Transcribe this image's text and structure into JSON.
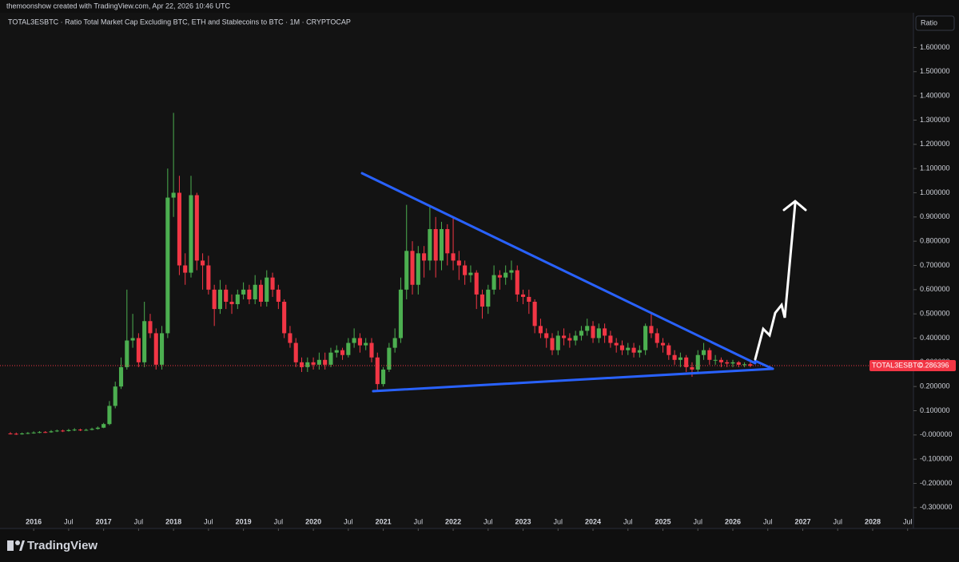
{
  "header": {
    "credit": "themoonshow created with TradingView.com, Apr 22, 2026 10:46 UTC",
    "scale_button": "Ratio",
    "brand": "TradingView"
  },
  "chart_data": {
    "type": "candlestick",
    "title": "TOTAL3ESBTC · Ratio Total Market Cap Excluding BTC, ETH and Stablecoins to BTC · 1M · CRYPTOCAP",
    "up_color": "#4caf50",
    "down_color": "#f23645",
    "x": [
      "2015-09",
      "2015-10",
      "2015-11",
      "2015-12",
      "2016-01",
      "2016-02",
      "2016-03",
      "2016-04",
      "2016-05",
      "2016-06",
      "2016-07",
      "2016-08",
      "2016-09",
      "2016-10",
      "2016-11",
      "2016-12",
      "2017-01",
      "2017-02",
      "2017-03",
      "2017-04",
      "2017-05",
      "2017-06",
      "2017-07",
      "2017-08",
      "2017-09",
      "2017-10",
      "2017-11",
      "2017-12",
      "2018-01",
      "2018-02",
      "2018-03",
      "2018-04",
      "2018-05",
      "2018-06",
      "2018-07",
      "2018-08",
      "2018-09",
      "2018-10",
      "2018-11",
      "2018-12",
      "2019-01",
      "2019-02",
      "2019-03",
      "2019-04",
      "2019-05",
      "2019-06",
      "2019-07",
      "2019-08",
      "2019-09",
      "2019-10",
      "2019-11",
      "2019-12",
      "2020-01",
      "2020-02",
      "2020-03",
      "2020-04",
      "2020-05",
      "2020-06",
      "2020-07",
      "2020-08",
      "2020-09",
      "2020-10",
      "2020-11",
      "2020-12",
      "2021-01",
      "2021-02",
      "2021-03",
      "2021-04",
      "2021-05",
      "2021-06",
      "2021-07",
      "2021-08",
      "2021-09",
      "2021-10",
      "2021-11",
      "2021-12",
      "2022-01",
      "2022-02",
      "2022-03",
      "2022-04",
      "2022-05",
      "2022-06",
      "2022-07",
      "2022-08",
      "2022-09",
      "2022-10",
      "2022-11",
      "2022-12",
      "2023-01",
      "2023-02",
      "2023-03",
      "2023-04",
      "2023-05",
      "2023-06",
      "2023-07",
      "2023-08",
      "2023-09",
      "2023-10",
      "2023-11",
      "2023-12",
      "2024-01",
      "2024-02",
      "2024-03",
      "2024-04",
      "2024-05",
      "2024-06",
      "2024-07",
      "2024-08",
      "2024-09",
      "2024-10",
      "2024-11",
      "2024-12",
      "2025-01",
      "2025-02",
      "2025-03",
      "2025-04",
      "2025-05",
      "2025-06",
      "2025-07",
      "2025-08",
      "2025-09",
      "2025-10",
      "2025-11",
      "2025-12",
      "2026-01",
      "2026-02",
      "2026-03",
      "2026-04"
    ],
    "open": [
      0.006,
      0.005,
      0.004,
      0.006,
      0.008,
      0.01,
      0.012,
      0.011,
      0.015,
      0.018,
      0.016,
      0.02,
      0.022,
      0.019,
      0.021,
      0.025,
      0.03,
      0.045,
      0.12,
      0.2,
      0.28,
      0.39,
      0.4,
      0.3,
      0.47,
      0.42,
      0.29,
      0.42,
      0.98,
      1.0,
      0.7,
      0.67,
      0.99,
      0.72,
      0.7,
      0.6,
      0.52,
      0.6,
      0.55,
      0.54,
      0.58,
      0.6,
      0.56,
      0.62,
      0.55,
      0.65,
      0.6,
      0.55,
      0.42,
      0.38,
      0.3,
      0.28,
      0.3,
      0.29,
      0.31,
      0.29,
      0.34,
      0.35,
      0.33,
      0.38,
      0.4,
      0.37,
      0.38,
      0.32,
      0.21,
      0.27,
      0.36,
      0.4,
      0.6,
      0.76,
      0.62,
      0.75,
      0.72,
      0.85,
      0.72,
      0.85,
      0.75,
      0.72,
      0.7,
      0.66,
      0.67,
      0.58,
      0.53,
      0.6,
      0.66,
      0.65,
      0.67,
      0.68,
      0.58,
      0.57,
      0.55,
      0.45,
      0.42,
      0.4,
      0.35,
      0.41,
      0.4,
      0.39,
      0.41,
      0.43,
      0.45,
      0.4,
      0.44,
      0.41,
      0.38,
      0.37,
      0.35,
      0.36,
      0.34,
      0.35,
      0.45,
      0.42,
      0.38,
      0.37,
      0.33,
      0.31,
      0.32,
      0.28,
      0.27,
      0.33,
      0.35,
      0.31,
      0.31,
      0.3,
      0.295,
      0.3,
      0.29,
      0.292
    ],
    "high": [
      0.012,
      0.01,
      0.01,
      0.012,
      0.015,
      0.016,
      0.016,
      0.02,
      0.022,
      0.022,
      0.025,
      0.028,
      0.026,
      0.026,
      0.03,
      0.035,
      0.05,
      0.14,
      0.22,
      0.32,
      0.6,
      0.5,
      0.42,
      0.55,
      0.5,
      0.44,
      0.45,
      1.1,
      1.33,
      1.07,
      0.75,
      1.07,
      1.0,
      0.75,
      0.74,
      0.62,
      0.64,
      0.62,
      0.58,
      0.6,
      0.63,
      0.62,
      0.66,
      0.64,
      0.68,
      0.67,
      0.62,
      0.56,
      0.45,
      0.4,
      0.32,
      0.32,
      0.32,
      0.34,
      0.34,
      0.36,
      0.37,
      0.36,
      0.4,
      0.44,
      0.42,
      0.4,
      0.4,
      0.34,
      0.28,
      0.38,
      0.44,
      0.65,
      0.95,
      0.8,
      0.78,
      0.78,
      0.95,
      0.9,
      0.88,
      0.87,
      0.9,
      0.76,
      0.72,
      0.7,
      0.68,
      0.6,
      0.62,
      0.7,
      0.68,
      0.7,
      0.72,
      0.7,
      0.6,
      0.6,
      0.56,
      0.48,
      0.44,
      0.42,
      0.43,
      0.44,
      0.42,
      0.43,
      0.45,
      0.48,
      0.47,
      0.46,
      0.46,
      0.43,
      0.4,
      0.39,
      0.38,
      0.38,
      0.37,
      0.46,
      0.5,
      0.44,
      0.4,
      0.38,
      0.35,
      0.34,
      0.33,
      0.3,
      0.35,
      0.38,
      0.36,
      0.33,
      0.32,
      0.31,
      0.31,
      0.305,
      0.3,
      0.3
    ],
    "low": [
      0.002,
      0.0,
      0.001,
      0.003,
      0.005,
      0.007,
      0.008,
      0.009,
      0.012,
      0.012,
      0.014,
      0.016,
      0.016,
      0.017,
      0.019,
      0.022,
      0.028,
      0.04,
      0.11,
      0.19,
      0.27,
      0.36,
      0.28,
      0.28,
      0.4,
      0.27,
      0.27,
      0.4,
      0.9,
      0.66,
      0.62,
      0.65,
      0.68,
      0.6,
      0.58,
      0.45,
      0.5,
      0.52,
      0.5,
      0.52,
      0.56,
      0.54,
      0.54,
      0.53,
      0.53,
      0.57,
      0.52,
      0.4,
      0.36,
      0.28,
      0.26,
      0.26,
      0.27,
      0.27,
      0.27,
      0.28,
      0.32,
      0.31,
      0.32,
      0.36,
      0.34,
      0.35,
      0.3,
      0.18,
      0.2,
      0.26,
      0.34,
      0.38,
      0.56,
      0.58,
      0.58,
      0.65,
      0.68,
      0.65,
      0.68,
      0.7,
      0.68,
      0.64,
      0.62,
      0.63,
      0.52,
      0.48,
      0.5,
      0.58,
      0.6,
      0.62,
      0.64,
      0.55,
      0.54,
      0.5,
      0.42,
      0.4,
      0.36,
      0.33,
      0.33,
      0.37,
      0.36,
      0.37,
      0.39,
      0.41,
      0.38,
      0.38,
      0.38,
      0.36,
      0.34,
      0.33,
      0.33,
      0.32,
      0.32,
      0.33,
      0.4,
      0.36,
      0.34,
      0.31,
      0.29,
      0.28,
      0.26,
      0.24,
      0.26,
      0.31,
      0.29,
      0.29,
      0.28,
      0.28,
      0.28,
      0.28,
      0.28,
      0.28
    ],
    "close": [
      0.005,
      0.004,
      0.006,
      0.008,
      0.01,
      0.012,
      0.011,
      0.015,
      0.018,
      0.016,
      0.02,
      0.022,
      0.019,
      0.021,
      0.025,
      0.03,
      0.045,
      0.12,
      0.2,
      0.28,
      0.39,
      0.4,
      0.3,
      0.47,
      0.42,
      0.29,
      0.42,
      0.98,
      1.0,
      0.7,
      0.67,
      0.99,
      0.72,
      0.7,
      0.6,
      0.52,
      0.6,
      0.55,
      0.54,
      0.58,
      0.6,
      0.56,
      0.62,
      0.55,
      0.65,
      0.6,
      0.55,
      0.42,
      0.38,
      0.3,
      0.28,
      0.3,
      0.29,
      0.31,
      0.29,
      0.34,
      0.35,
      0.33,
      0.38,
      0.4,
      0.37,
      0.38,
      0.32,
      0.21,
      0.27,
      0.36,
      0.4,
      0.6,
      0.76,
      0.62,
      0.75,
      0.72,
      0.85,
      0.72,
      0.85,
      0.75,
      0.72,
      0.7,
      0.66,
      0.67,
      0.58,
      0.53,
      0.6,
      0.66,
      0.65,
      0.67,
      0.68,
      0.58,
      0.57,
      0.55,
      0.45,
      0.42,
      0.4,
      0.35,
      0.41,
      0.4,
      0.39,
      0.41,
      0.43,
      0.45,
      0.4,
      0.44,
      0.41,
      0.38,
      0.37,
      0.35,
      0.36,
      0.34,
      0.35,
      0.45,
      0.42,
      0.38,
      0.37,
      0.33,
      0.31,
      0.32,
      0.28,
      0.27,
      0.33,
      0.35,
      0.31,
      0.31,
      0.3,
      0.295,
      0.3,
      0.29,
      0.292,
      0.286
    ],
    "xlim": [
      "2015-09",
      "2028-08"
    ],
    "xticks": [
      {
        "value": "2016-01",
        "label": "2016"
      },
      {
        "value": "2016-07",
        "label": "Jul"
      },
      {
        "value": "2017-01",
        "label": "2017"
      },
      {
        "value": "2017-07",
        "label": "Jul"
      },
      {
        "value": "2018-01",
        "label": "2018"
      },
      {
        "value": "2018-07",
        "label": "Jul"
      },
      {
        "value": "2019-01",
        "label": "2019"
      },
      {
        "value": "2019-07",
        "label": "Jul"
      },
      {
        "value": "2020-01",
        "label": "2020"
      },
      {
        "value": "2020-07",
        "label": "Jul"
      },
      {
        "value": "2021-01",
        "label": "2021"
      },
      {
        "value": "2021-07",
        "label": "Jul"
      },
      {
        "value": "2022-01",
        "label": "2022"
      },
      {
        "value": "2022-07",
        "label": "Jul"
      },
      {
        "value": "2023-01",
        "label": "2023"
      },
      {
        "value": "2023-07",
        "label": "Jul"
      },
      {
        "value": "2024-01",
        "label": "2024"
      },
      {
        "value": "2024-07",
        "label": "Jul"
      },
      {
        "value": "2025-01",
        "label": "2025"
      },
      {
        "value": "2025-07",
        "label": "Jul"
      },
      {
        "value": "2026-01",
        "label": "2026"
      },
      {
        "value": "2026-07",
        "label": "Jul"
      },
      {
        "value": "2027-01",
        "label": "2027"
      },
      {
        "value": "2027-07",
        "label": "Jul"
      },
      {
        "value": "2028-01",
        "label": "2028"
      },
      {
        "value": "2028-07",
        "label": "Jul"
      }
    ],
    "ylim": [
      -0.34,
      1.73
    ],
    "yticks": [
      {
        "value": 1.6,
        "label": "1.600000"
      },
      {
        "value": 1.5,
        "label": "1.500000"
      },
      {
        "value": 1.4,
        "label": "1.400000"
      },
      {
        "value": 1.3,
        "label": "1.300000"
      },
      {
        "value": 1.2,
        "label": "1.200000"
      },
      {
        "value": 1.1,
        "label": "1.100000"
      },
      {
        "value": 1.0,
        "label": "1.000000"
      },
      {
        "value": 0.9,
        "label": "0.900000"
      },
      {
        "value": 0.8,
        "label": "0.800000"
      },
      {
        "value": 0.7,
        "label": "0.700000"
      },
      {
        "value": 0.6,
        "label": "0.600000"
      },
      {
        "value": 0.5,
        "label": "0.500000"
      },
      {
        "value": 0.4,
        "label": "0.400000"
      },
      {
        "value": 0.3,
        "label": "0.300000"
      },
      {
        "value": 0.2,
        "label": "0.200000"
      },
      {
        "value": 0.1,
        "label": "0.100000"
      },
      {
        "value": 0,
        "label": "-0.000000"
      },
      {
        "value": -0.1,
        "label": "-0.100000"
      },
      {
        "value": -0.2,
        "label": "-0.200000"
      },
      {
        "value": -0.3,
        "label": "-0.300000"
      }
    ],
    "last_price": {
      "symbol": "TOTAL3ESBTC",
      "value": 0.286396,
      "color": "#f23645"
    }
  }
}
